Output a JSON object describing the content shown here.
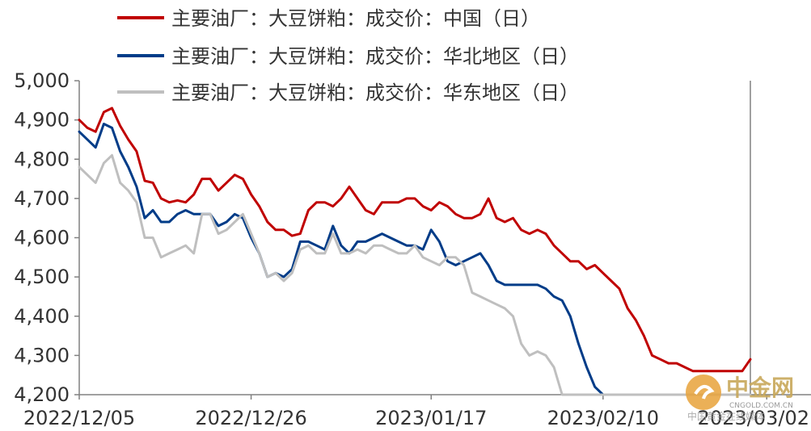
{
  "chart_data": {
    "type": "line",
    "title": "",
    "xlabel": "",
    "ylabel": "",
    "ylim": [
      4200,
      5000
    ],
    "yticks": [
      "5,000",
      "4,900",
      "4,800",
      "4,700",
      "4,600",
      "4,500",
      "4,400",
      "4,300",
      "4,200"
    ],
    "ytick_values": [
      5000,
      4900,
      4800,
      4700,
      4600,
      4500,
      4400,
      4300,
      4200
    ],
    "xticks": [
      "2022/12/05",
      "2022/12/26",
      "2023/01/17",
      "2023/02/10",
      "2023/03/02"
    ],
    "xtick_index": [
      0,
      21,
      43,
      64,
      84
    ],
    "x_count": 83,
    "grid": false,
    "legend_position": "top",
    "series": [
      {
        "name": "主要油厂：大豆饼粕：成交价：中国（日）",
        "color": "#C00000",
        "values": [
          4900,
          4880,
          4870,
          4920,
          4930,
          4885,
          4850,
          4820,
          4745,
          4740,
          4700,
          4690,
          4695,
          4690,
          4710,
          4750,
          4750,
          4720,
          4740,
          4760,
          4750,
          4710,
          4680,
          4640,
          4620,
          4620,
          4605,
          4610,
          4670,
          4690,
          4690,
          4680,
          4700,
          4730,
          4700,
          4670,
          4660,
          4690,
          4690,
          4690,
          4700,
          4700,
          4680,
          4670,
          4690,
          4680,
          4660,
          4650,
          4650,
          4660,
          4700,
          4650,
          4640,
          4650,
          4620,
          4610,
          4620,
          4610,
          4580,
          4560,
          4540,
          4540,
          4520,
          4530,
          4510,
          4490,
          4470,
          4420,
          4390,
          4350,
          4300,
          4290,
          4280,
          4280,
          4270,
          4260,
          4260,
          4260,
          4260,
          4260,
          4260,
          4260,
          4290
        ]
      },
      {
        "name": "主要油厂：大豆饼粕：成交价：华北地区（日）",
        "color": "#003C88",
        "values": [
          4870,
          4850,
          4830,
          4890,
          4880,
          4820,
          4780,
          4730,
          4650,
          4670,
          4640,
          4640,
          4660,
          4670,
          4660,
          4660,
          4660,
          4630,
          4640,
          4660,
          4650,
          4600,
          4560,
          4500,
          4510,
          4500,
          4520,
          4590,
          4590,
          4580,
          4570,
          4630,
          4580,
          4560,
          4590,
          4590,
          4600,
          4610,
          4600,
          4590,
          4580,
          4580,
          4570,
          4620,
          4590,
          4540,
          4530,
          4540,
          4550,
          4560,
          4530,
          4490,
          4480,
          4480,
          4480,
          4480,
          4480,
          4470,
          4450,
          4440,
          4400,
          4330,
          4270,
          4220,
          4200,
          4200,
          4200,
          4200,
          4200,
          4200,
          4200,
          4200,
          4200,
          4200,
          4200,
          4200,
          4200,
          4200,
          4200,
          4200,
          4200,
          4200,
          4200
        ]
      },
      {
        "name": "主要油厂：大豆饼粕：成交价：华东地区（日）",
        "color": "#BFBFBF",
        "values": [
          4780,
          4760,
          4740,
          4790,
          4810,
          4740,
          4720,
          4690,
          4600,
          4600,
          4550,
          4560,
          4570,
          4580,
          4560,
          4660,
          4660,
          4610,
          4620,
          4640,
          4660,
          4610,
          4560,
          4500,
          4510,
          4490,
          4510,
          4570,
          4580,
          4560,
          4560,
          4610,
          4560,
          4560,
          4570,
          4560,
          4580,
          4580,
          4570,
          4560,
          4560,
          4580,
          4550,
          4540,
          4530,
          4550,
          4550,
          4530,
          4460,
          4450,
          4440,
          4430,
          4420,
          4400,
          4330,
          4300,
          4310,
          4300,
          4270,
          4200,
          4200,
          4200,
          4200,
          4200,
          4200,
          4200,
          4200,
          4200,
          4200,
          4200,
          4200,
          4200,
          4200,
          4200,
          4200,
          4200,
          4200,
          4200,
          4200,
          4200,
          4200,
          4200,
          4200
        ]
      }
    ]
  },
  "watermark": {
    "name": "中金网",
    "url": "CNGOLD.COM.CN",
    "slogan": "中国黄金在线媒体"
  }
}
